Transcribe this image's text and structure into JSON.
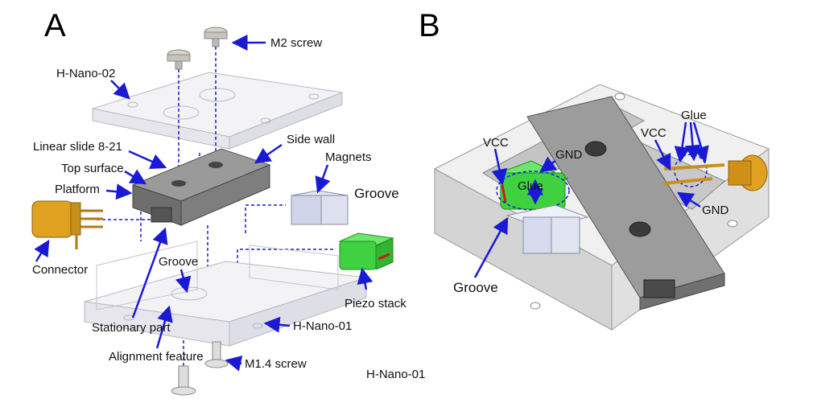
{
  "panels": {
    "a": "A",
    "b": "B"
  },
  "panel_a_labels": {
    "m2_screw": "M2 screw",
    "h_nano_02": "H-Nano-02",
    "linear_slide": "Linear slide 8-21",
    "side_wall": "Side wall",
    "top_surface": "Top surface",
    "magnets": "Magnets",
    "platform": "Platform",
    "groove_right": "Groove",
    "connector": "Connector",
    "groove_center": "Groove",
    "piezo_stack": "Piezo stack",
    "stationary_part": "Stationary part",
    "h_nano_01_mid": "H-Nano-01",
    "m14_screw": "M1.4 screw",
    "alignment_feature": "Alignment feature",
    "h_nano_01_bottom": "H-Nano-01"
  },
  "panel_b_labels": {
    "vcc_left": "VCC",
    "gnd_left": "GND",
    "glue_left": "Glue",
    "groove": "Groove",
    "vcc_right": "VCC",
    "glue_right": "Glue",
    "gnd_right": "GND"
  },
  "colors": {
    "arrow": "#1a1ad6",
    "piezo": "#3fd13f",
    "gold": "#e0a020",
    "gray_block": "#8c8c8c",
    "transparent_part": "#e8e8ee"
  }
}
